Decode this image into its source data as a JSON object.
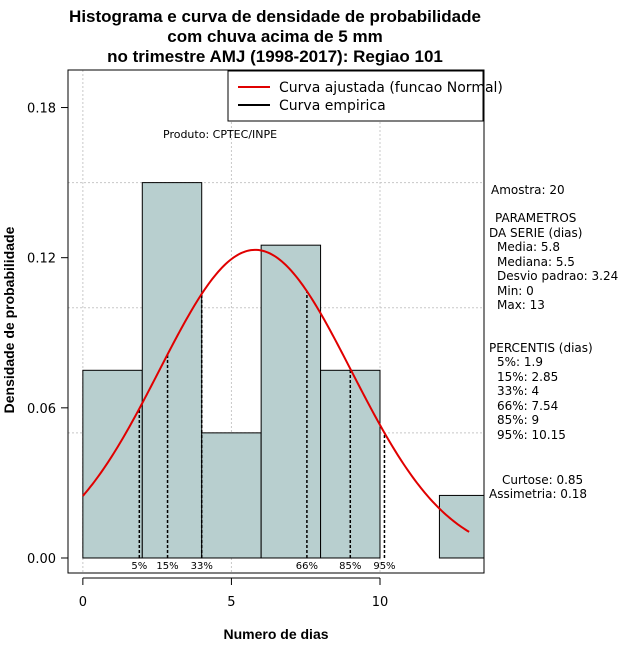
{
  "chart_data": {
    "type": "bar",
    "title_lines": [
      "Histograma e curva de densidade de probabilidade",
      "com chuva acima de 5 mm",
      "no trimestre AMJ (1998-2017): Regiao 101"
    ],
    "xlabel": "Numero de dias",
    "ylabel": "Densidade de probabilidade",
    "xlim": [
      -0.5,
      13.5
    ],
    "ylim": [
      -0.006,
      0.195
    ],
    "x_ticks": [
      0,
      5,
      10
    ],
    "y_ticks": [
      0.0,
      0.06,
      0.12,
      0.18
    ],
    "y_tick_labels": [
      "0.00",
      "0.06",
      "0.12",
      "0.18"
    ],
    "grid_y": [
      0.05,
      0.1,
      0.15
    ],
    "grid_x": [
      0,
      5,
      10
    ],
    "bins": [
      {
        "x0": 0,
        "x1": 2,
        "density": 0.075
      },
      {
        "x0": 2,
        "x1": 4,
        "density": 0.15
      },
      {
        "x0": 4,
        "x1": 6,
        "density": 0.05
      },
      {
        "x0": 6,
        "x1": 8,
        "density": 0.125
      },
      {
        "x0": 8,
        "x1": 10,
        "density": 0.075
      },
      {
        "x0": 10,
        "x1": 12,
        "density": 0.0
      },
      {
        "x0": 12,
        "x1": 14,
        "density": 0.025
      }
    ],
    "bar_fill": "#b8cfcf",
    "normal_fit": {
      "mean": 5.8,
      "sd": 3.24,
      "x_from": 0,
      "x_to": 13,
      "color": "#e00000"
    },
    "percentile_lines": [
      {
        "label": "5%",
        "x": 1.9
      },
      {
        "label": "15%",
        "x": 2.85
      },
      {
        "label": "33%",
        "x": 4
      },
      {
        "label": "66%",
        "x": 7.54
      },
      {
        "label": "85%",
        "x": 9
      },
      {
        "label": "95%",
        "x": 10.15
      }
    ],
    "legend": {
      "position": "top-right",
      "entries": [
        {
          "label": "Curva ajustada (funcao Normal)",
          "color": "#e00000"
        },
        {
          "label": "Curva empirica",
          "color": "#000000"
        }
      ]
    },
    "annotation": "Produto: CPTEC/INPE"
  },
  "side_panel": {
    "sample": "Amostra: 20",
    "params_header": "PARAMETROS",
    "params_sub": "DA SERIE (dias)",
    "media": "Media: 5.8",
    "mediana": "Mediana: 5.5",
    "desvio": "Desvio padrao: 3.24",
    "min": "Min: 0",
    "max": "Max: 13",
    "pct_header": "PERCENTIS (dias)",
    "p5": "5%: 1.9",
    "p15": "15%: 2.85",
    "p33": "33%: 4",
    "p66": "66%: 7.54",
    "p85": "85%: 9",
    "p95": "95%: 10.15",
    "curtose": "Curtose: 0.85",
    "assimetria": "Assimetria: 0.18"
  }
}
